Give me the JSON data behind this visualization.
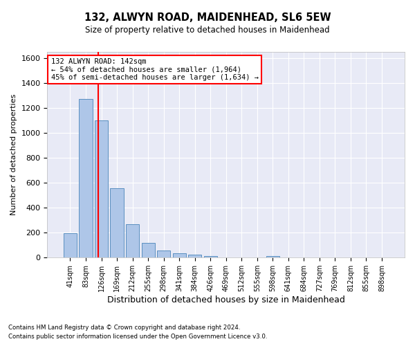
{
  "title": "132, ALWYN ROAD, MAIDENHEAD, SL6 5EW",
  "subtitle": "Size of property relative to detached houses in Maidenhead",
  "xlabel": "Distribution of detached houses by size in Maidenhead",
  "ylabel": "Number of detached properties",
  "footer_line1": "Contains HM Land Registry data © Crown copyright and database right 2024.",
  "footer_line2": "Contains public sector information licensed under the Open Government Licence v3.0.",
  "bin_labels": [
    "41sqm",
    "83sqm",
    "126sqm",
    "169sqm",
    "212sqm",
    "255sqm",
    "298sqm",
    "341sqm",
    "384sqm",
    "426sqm",
    "469sqm",
    "512sqm",
    "555sqm",
    "598sqm",
    "641sqm",
    "684sqm",
    "727sqm",
    "769sqm",
    "812sqm",
    "855sqm",
    "898sqm"
  ],
  "bar_values": [
    197,
    1270,
    1100,
    555,
    265,
    120,
    58,
    32,
    22,
    15,
    0,
    0,
    0,
    14,
    0,
    0,
    0,
    0,
    0,
    0,
    0
  ],
  "bar_color": "#aec6e8",
  "bar_edge_color": "#5a8fc0",
  "background_color": "#e8eaf6",
  "grid_color": "white",
  "annotation_line1": "132 ALWYN ROAD: 142sqm",
  "annotation_line2": "← 54% of detached houses are smaller (1,964)",
  "annotation_line3": "45% of semi-detached houses are larger (1,634) →",
  "vline_x": 1.78,
  "vline_color": "red",
  "annotation_box_color": "red",
  "ylim": [
    0,
    1650
  ],
  "yticks": [
    0,
    200,
    400,
    600,
    800,
    1000,
    1200,
    1400,
    1600
  ]
}
